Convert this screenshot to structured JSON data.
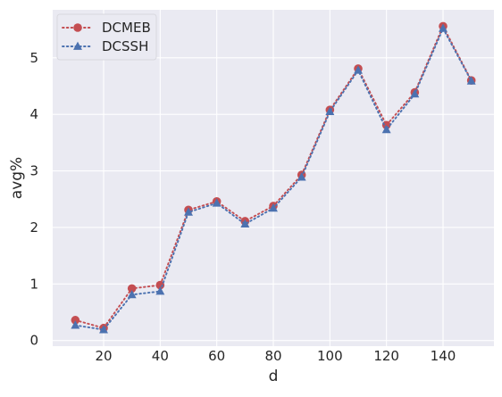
{
  "chart_data": {
    "type": "line",
    "title": "",
    "xlabel": "d",
    "ylabel": "avg%",
    "xlim": [
      2,
      158
    ],
    "ylim": [
      -0.1,
      5.85
    ],
    "xticks": [
      20,
      40,
      60,
      80,
      100,
      120,
      140
    ],
    "yticks": [
      0,
      1,
      2,
      3,
      4,
      5
    ],
    "grid": true,
    "legend_position": "top-left",
    "background_color": "#eaeaf2",
    "grid_color": "#ffffff",
    "x": [
      10,
      20,
      30,
      40,
      50,
      60,
      70,
      80,
      90,
      100,
      110,
      120,
      130,
      140,
      150
    ],
    "series": [
      {
        "name": "DCMEB",
        "color": "#c44e52",
        "marker": "circle",
        "linestyle": "dotted",
        "values": [
          0.36,
          0.22,
          0.92,
          0.98,
          2.31,
          2.46,
          2.11,
          2.38,
          2.93,
          4.08,
          4.81,
          3.81,
          4.39,
          5.56,
          4.6
        ]
      },
      {
        "name": "DCSSH",
        "color": "#4c72b0",
        "marker": "triangle",
        "linestyle": "dotted",
        "values": [
          0.27,
          0.19,
          0.81,
          0.87,
          2.27,
          2.43,
          2.06,
          2.34,
          2.89,
          4.05,
          4.78,
          3.73,
          4.36,
          5.52,
          4.59
        ]
      }
    ]
  }
}
